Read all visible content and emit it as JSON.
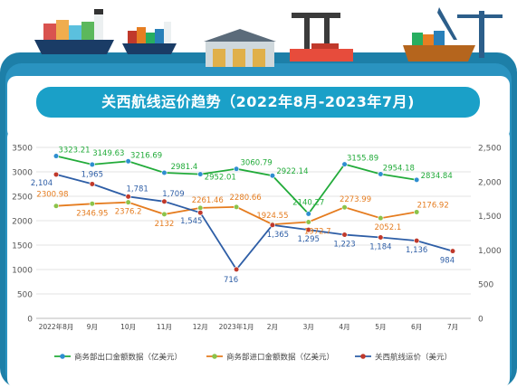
{
  "title": "关西航线运价趋势（2022年8月-2023年7月)",
  "colors": {
    "frame": "#1d7fa8",
    "title_bg": "#1aa0c8",
    "export": "#22ab3a",
    "import": "#e57c1f",
    "freight": "#2e5ea6",
    "export_marker": "#2e8ed0",
    "import_marker": "#8bc34a",
    "freight_marker": "#c0392b"
  },
  "icons": [
    "container-ship-icon",
    "container-ship-icon",
    "warehouse-icon",
    "port-crane-icon",
    "cargo-ship-crane-icon"
  ],
  "chart_data": {
    "type": "line",
    "categories": [
      "2022年8月",
      "9月",
      "10月",
      "11月",
      "12月",
      "2023年1月",
      "2月",
      "3月",
      "4月",
      "5月",
      "6月",
      "7月"
    ],
    "left_axis": {
      "min": 0,
      "max": 3500,
      "ticks": [
        0,
        500,
        1000,
        1500,
        2000,
        2500,
        3000,
        3500
      ]
    },
    "right_axis": {
      "min": 0,
      "max": 2500,
      "ticks": [
        "0",
        "500",
        "1,000",
        "1,500",
        "2,000",
        "2,500"
      ]
    },
    "grid": true,
    "legend_position": "bottom",
    "series": [
      {
        "name": "商务部出口金额数据（亿美元）",
        "axis": "left",
        "values": [
          3323.21,
          3149.63,
          3216.69,
          2981.4,
          2952.01,
          3060.79,
          2922.14,
          2140.27,
          3155.89,
          2954.18,
          2834.84,
          null
        ],
        "labels": [
          "3323.21",
          "3149.63",
          "3216.69",
          "2981.4",
          "2952.01",
          "3060.79",
          "2922.14",
          "2140.27",
          "3155.89",
          "2954.18",
          "2834.84",
          ""
        ]
      },
      {
        "name": "商务部进口金额数据（亿美元）",
        "axis": "left",
        "values": [
          2300.98,
          2346.95,
          2376.2,
          2132,
          2261.46,
          2280.66,
          1924.55,
          1972.7,
          2273.99,
          2052.1,
          2176.92,
          null
        ],
        "labels": [
          "2300.98",
          "2346.95",
          "2376.2",
          "2132",
          "2261.46",
          "2280.66",
          "1924.55",
          "1972.7",
          "2273.99",
          "2052.1",
          "2176.92",
          ""
        ]
      },
      {
        "name": "关西航线运价（美元）",
        "axis": "right",
        "values": [
          2104,
          1965,
          1781,
          1709,
          1545,
          716,
          1365,
          1295,
          1223,
          1184,
          1136,
          984
        ],
        "labels": [
          "2,104",
          "1,965",
          "1,781",
          "1,709",
          "1,545",
          "716",
          "1,365",
          "1,295",
          "1,223",
          "1,184",
          "1,136",
          "984"
        ]
      }
    ]
  }
}
